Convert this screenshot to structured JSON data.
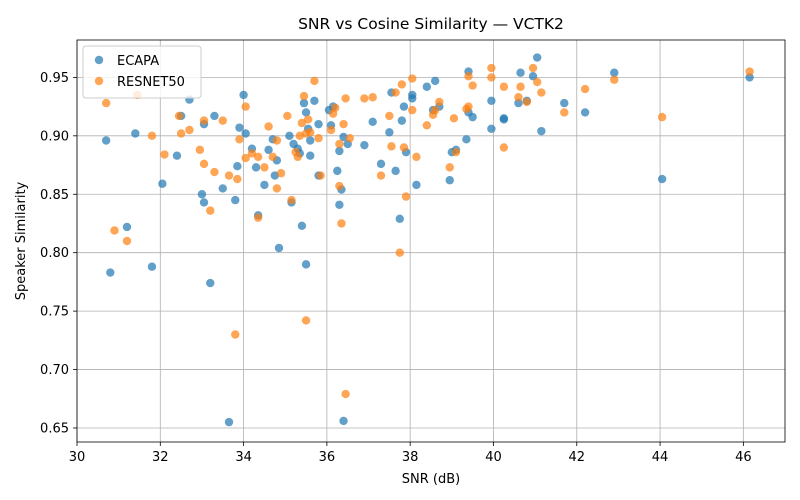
{
  "chart_data": {
    "type": "scatter",
    "title": "SNR vs Cosine Similarity — VCTK2",
    "xlabel": "SNR (dB)",
    "ylabel": "Speaker Similarity",
    "xlim": [
      30.0,
      47.0
    ],
    "ylim": [
      0.638,
      0.982
    ],
    "xticks": [
      30,
      32,
      34,
      36,
      38,
      40,
      42,
      44,
      46
    ],
    "yticks": [
      0.65,
      0.7,
      0.75,
      0.8,
      0.85,
      0.9,
      0.95
    ],
    "grid": true,
    "legend_position": "top-left",
    "series": [
      {
        "name": "ECAPA",
        "color": "#1f77b4",
        "points": [
          [
            30.7,
            0.896
          ],
          [
            30.8,
            0.783
          ],
          [
            31.2,
            0.822
          ],
          [
            31.4,
            0.902
          ],
          [
            31.8,
            0.788
          ],
          [
            32.05,
            0.859
          ],
          [
            32.4,
            0.883
          ],
          [
            32.5,
            0.917
          ],
          [
            32.7,
            0.931
          ],
          [
            33.0,
            0.85
          ],
          [
            33.05,
            0.843
          ],
          [
            33.05,
            0.91
          ],
          [
            33.2,
            0.774
          ],
          [
            33.3,
            0.917
          ],
          [
            33.5,
            0.855
          ],
          [
            33.65,
            0.655
          ],
          [
            33.8,
            0.845
          ],
          [
            33.85,
            0.874
          ],
          [
            33.9,
            0.907
          ],
          [
            34.0,
            0.935
          ],
          [
            34.05,
            0.902
          ],
          [
            34.2,
            0.889
          ],
          [
            34.3,
            0.873
          ],
          [
            34.35,
            0.832
          ],
          [
            34.5,
            0.858
          ],
          [
            34.6,
            0.888
          ],
          [
            34.7,
            0.897
          ],
          [
            34.75,
            0.866
          ],
          [
            34.8,
            0.879
          ],
          [
            34.85,
            0.804
          ],
          [
            35.1,
            0.9
          ],
          [
            35.15,
            0.843
          ],
          [
            35.2,
            0.893
          ],
          [
            35.3,
            0.889
          ],
          [
            35.35,
            0.885
          ],
          [
            35.4,
            0.823
          ],
          [
            35.45,
            0.928
          ],
          [
            35.5,
            0.92
          ],
          [
            35.5,
            0.79
          ],
          [
            35.55,
            0.906
          ],
          [
            35.6,
            0.883
          ],
          [
            35.6,
            0.896
          ],
          [
            35.7,
            0.93
          ],
          [
            35.8,
            0.91
          ],
          [
            35.8,
            0.866
          ],
          [
            36.05,
            0.922
          ],
          [
            36.1,
            0.909
          ],
          [
            36.15,
            0.925
          ],
          [
            36.25,
            0.87
          ],
          [
            36.3,
            0.841
          ],
          [
            36.3,
            0.887
          ],
          [
            36.35,
            0.854
          ],
          [
            36.4,
            0.899
          ],
          [
            36.4,
            0.656
          ],
          [
            36.5,
            0.893
          ],
          [
            36.9,
            0.892
          ],
          [
            37.1,
            0.912
          ],
          [
            37.3,
            0.876
          ],
          [
            37.5,
            0.903
          ],
          [
            37.55,
            0.937
          ],
          [
            37.65,
            0.87
          ],
          [
            37.75,
            0.829
          ],
          [
            37.8,
            0.913
          ],
          [
            37.85,
            0.925
          ],
          [
            37.9,
            0.886
          ],
          [
            38.05,
            0.932
          ],
          [
            38.05,
            0.935
          ],
          [
            38.15,
            0.858
          ],
          [
            38.4,
            0.942
          ],
          [
            38.55,
            0.922
          ],
          [
            38.6,
            0.947
          ],
          [
            38.7,
            0.925
          ],
          [
            38.95,
            0.862
          ],
          [
            39.0,
            0.886
          ],
          [
            39.1,
            0.888
          ],
          [
            39.35,
            0.897
          ],
          [
            39.4,
            0.92
          ],
          [
            39.4,
            0.955
          ],
          [
            39.5,
            0.916
          ],
          [
            39.95,
            0.906
          ],
          [
            39.95,
            0.93
          ],
          [
            40.25,
            0.914
          ],
          [
            40.25,
            0.915
          ],
          [
            40.6,
            0.928
          ],
          [
            40.65,
            0.954
          ],
          [
            40.8,
            0.93
          ],
          [
            40.95,
            0.951
          ],
          [
            41.05,
            0.967
          ],
          [
            41.15,
            0.904
          ],
          [
            41.7,
            0.928
          ],
          [
            42.2,
            0.92
          ],
          [
            42.9,
            0.954
          ],
          [
            44.05,
            0.863
          ],
          [
            46.15,
            0.95
          ]
        ]
      },
      {
        "name": "RESNET50",
        "color": "#ff7f0e",
        "points": [
          [
            30.7,
            0.928
          ],
          [
            30.9,
            0.819
          ],
          [
            31.2,
            0.81
          ],
          [
            31.45,
            0.935
          ],
          [
            31.8,
            0.9
          ],
          [
            32.1,
            0.884
          ],
          [
            32.45,
            0.917
          ],
          [
            32.5,
            0.902
          ],
          [
            32.7,
            0.905
          ],
          [
            32.95,
            0.888
          ],
          [
            33.05,
            0.913
          ],
          [
            33.05,
            0.876
          ],
          [
            33.2,
            0.836
          ],
          [
            33.3,
            0.869
          ],
          [
            33.5,
            0.913
          ],
          [
            33.65,
            0.866
          ],
          [
            33.8,
            0.73
          ],
          [
            33.85,
            0.863
          ],
          [
            33.9,
            0.897
          ],
          [
            34.05,
            0.925
          ],
          [
            34.05,
            0.881
          ],
          [
            34.2,
            0.885
          ],
          [
            34.35,
            0.882
          ],
          [
            34.35,
            0.83
          ],
          [
            34.5,
            0.873
          ],
          [
            34.6,
            0.908
          ],
          [
            34.7,
            0.882
          ],
          [
            34.8,
            0.855
          ],
          [
            34.8,
            0.896
          ],
          [
            34.9,
            0.868
          ],
          [
            35.05,
            0.917
          ],
          [
            35.15,
            0.845
          ],
          [
            35.25,
            0.886
          ],
          [
            35.3,
            0.882
          ],
          [
            35.35,
            0.9
          ],
          [
            35.4,
            0.911
          ],
          [
            35.45,
            0.934
          ],
          [
            35.5,
            0.742
          ],
          [
            35.5,
            0.902
          ],
          [
            35.55,
            0.914
          ],
          [
            35.6,
            0.903
          ],
          [
            35.7,
            0.947
          ],
          [
            35.8,
            0.898
          ],
          [
            35.85,
            0.866
          ],
          [
            36.1,
            0.905
          ],
          [
            36.15,
            0.919
          ],
          [
            36.2,
            0.924
          ],
          [
            36.3,
            0.857
          ],
          [
            36.3,
            0.893
          ],
          [
            36.35,
            0.825
          ],
          [
            36.4,
            0.91
          ],
          [
            36.45,
            0.932
          ],
          [
            36.45,
            0.679
          ],
          [
            36.55,
            0.898
          ],
          [
            36.9,
            0.932
          ],
          [
            37.1,
            0.933
          ],
          [
            37.3,
            0.866
          ],
          [
            37.5,
            0.917
          ],
          [
            37.55,
            0.891
          ],
          [
            37.65,
            0.937
          ],
          [
            37.75,
            0.8
          ],
          [
            37.8,
            0.944
          ],
          [
            37.85,
            0.89
          ],
          [
            37.9,
            0.848
          ],
          [
            38.05,
            0.949
          ],
          [
            38.05,
            0.922
          ],
          [
            38.15,
            0.882
          ],
          [
            38.4,
            0.909
          ],
          [
            38.55,
            0.918
          ],
          [
            38.6,
            0.922
          ],
          [
            38.7,
            0.929
          ],
          [
            38.95,
            0.873
          ],
          [
            39.05,
            0.915
          ],
          [
            39.1,
            0.886
          ],
          [
            39.35,
            0.923
          ],
          [
            39.4,
            0.925
          ],
          [
            39.4,
            0.951
          ],
          [
            39.5,
            0.943
          ],
          [
            39.95,
            0.95
          ],
          [
            39.95,
            0.958
          ],
          [
            40.25,
            0.942
          ],
          [
            40.25,
            0.89
          ],
          [
            40.6,
            0.933
          ],
          [
            40.65,
            0.942
          ],
          [
            40.8,
            0.929
          ],
          [
            40.95,
            0.958
          ],
          [
            41.05,
            0.946
          ],
          [
            41.15,
            0.937
          ],
          [
            41.7,
            0.92
          ],
          [
            42.2,
            0.94
          ],
          [
            42.9,
            0.948
          ],
          [
            44.05,
            0.916
          ],
          [
            46.15,
            0.955
          ]
        ]
      }
    ]
  }
}
